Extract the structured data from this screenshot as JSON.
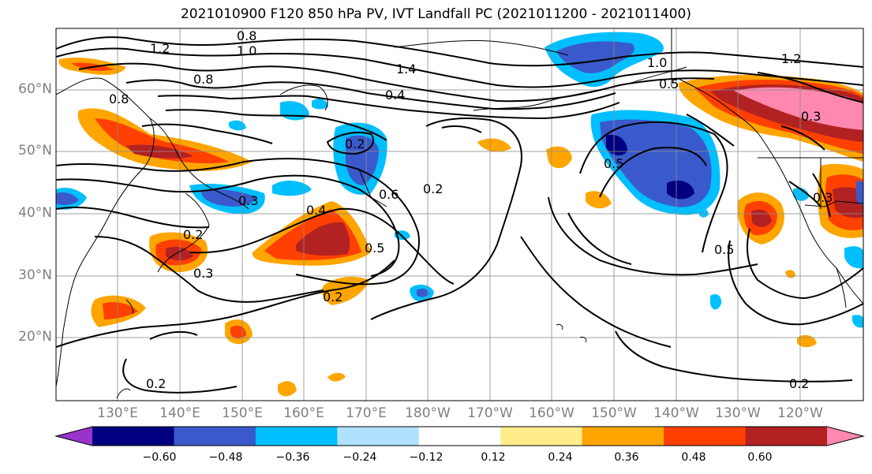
{
  "title": "2021010900 F120 850 hPa PV, IVT Landfall PC (2021011200 - 2021011400)",
  "lat_labels": [
    {
      "text": "60°N",
      "lat": 60
    },
    {
      "text": "50°N",
      "lat": 50
    },
    {
      "text": "40°N",
      "lat": 40
    },
    {
      "text": "30°N",
      "lat": 30
    },
    {
      "text": "20°N",
      "lat": 20
    }
  ],
  "lon_labels": [
    {
      "text": "130°E",
      "lon": 130
    },
    {
      "text": "140°E",
      "lon": 140
    },
    {
      "text": "150°E",
      "lon": 150
    },
    {
      "text": "160°E",
      "lon": 160
    },
    {
      "text": "170°E",
      "lon": 170
    },
    {
      "text": "180°W",
      "lon": 180
    },
    {
      "text": "170°W",
      "lon": 190
    },
    {
      "text": "160°W",
      "lon": 200
    },
    {
      "text": "150°W",
      "lon": 210
    },
    {
      "text": "140°W",
      "lon": 220
    },
    {
      "text": "130°W",
      "lon": 230
    },
    {
      "text": "120°W",
      "lon": 240
    }
  ],
  "colorbar": {
    "colors": [
      "#9933cc",
      "#000080",
      "#3a5acc",
      "#00bfff",
      "#b0e2ff",
      "#ffffff",
      "#ffec8b",
      "#ffa500",
      "#ff4000",
      "#b22222",
      "#ff88b0"
    ],
    "tick_labels": [
      "−0.60",
      "−0.48",
      "−0.36",
      "−0.24",
      "−0.12",
      "0.12",
      "0.24",
      "0.36",
      "0.48",
      "0.60"
    ]
  },
  "contour_labels": [
    "1.2",
    "0.8",
    "1.0",
    "0.8",
    "1.4",
    "0.4",
    "1.0",
    "0.5",
    "1.2",
    "0.3",
    "0.2",
    "0.3",
    "0.4",
    "0.6",
    "0.2",
    "0.5",
    "0.3",
    "0.2",
    "0.2",
    "0.2",
    "0.5",
    "0.2",
    "0.3",
    "0.5",
    "0.8"
  ]
}
